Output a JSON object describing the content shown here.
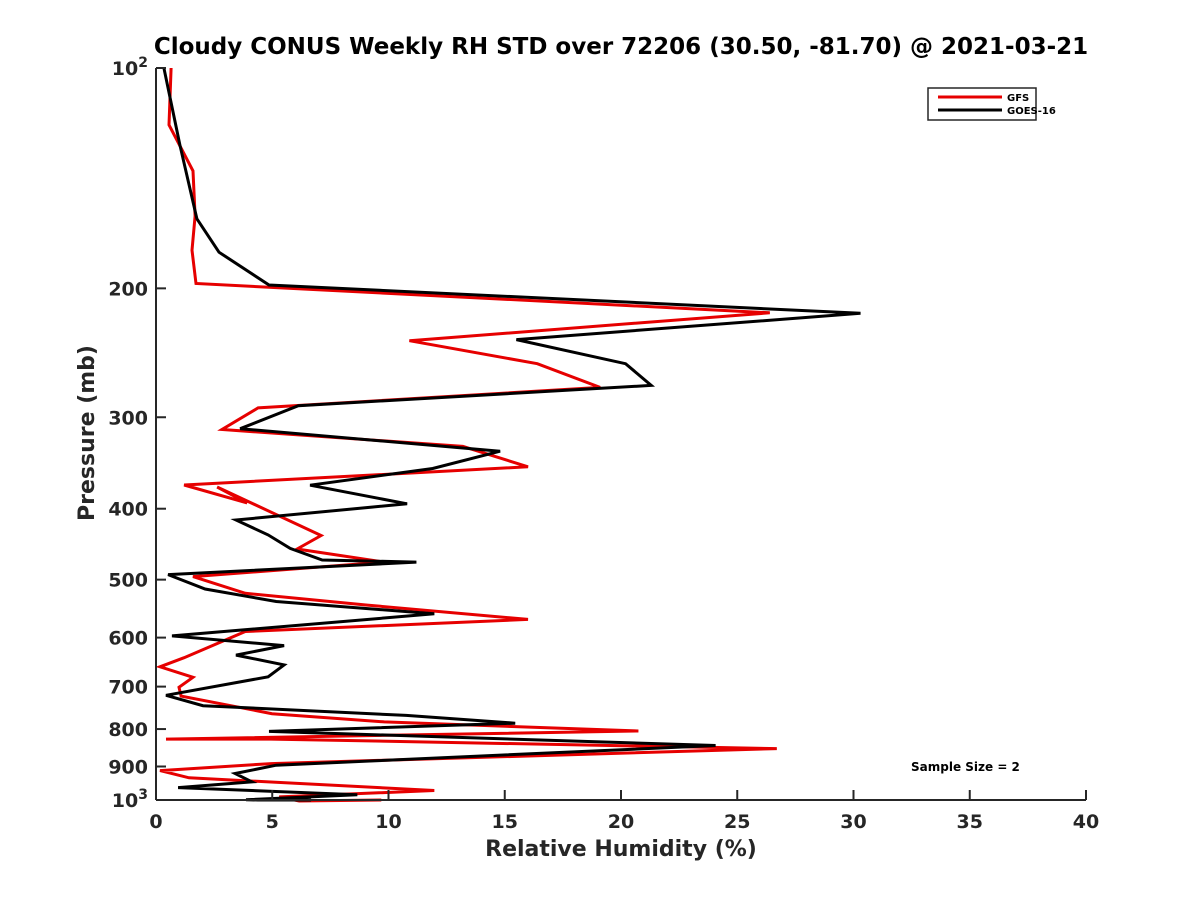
{
  "chart_data": {
    "type": "line",
    "title": "Cloudy CONUS Weekly RH STD over 72206 (30.50, -81.70) @ 2021-03-21",
    "xlabel": "Relative Humidity (%)",
    "ylabel": "Pressure (mb)",
    "xlim": [
      0,
      40
    ],
    "ylim": [
      100,
      1000
    ],
    "yscale": "log",
    "y_reversed": true,
    "grid": false,
    "legend_position": "top-right",
    "annotation": "Sample Size = 2",
    "xticks": [
      {
        "value": 0,
        "label": "0"
      },
      {
        "value": 5,
        "label": "5"
      },
      {
        "value": 10,
        "label": "10"
      },
      {
        "value": 15,
        "label": "15"
      },
      {
        "value": 20,
        "label": "20"
      },
      {
        "value": 25,
        "label": "25"
      },
      {
        "value": 30,
        "label": "30"
      },
      {
        "value": 35,
        "label": "35"
      },
      {
        "value": 40,
        "label": "40"
      }
    ],
    "yticks": [
      {
        "value": 100,
        "label": "10",
        "sup": "2"
      },
      {
        "value": 200,
        "label": "200",
        "sup": ""
      },
      {
        "value": 300,
        "label": "300",
        "sup": ""
      },
      {
        "value": 400,
        "label": "400",
        "sup": ""
      },
      {
        "value": 500,
        "label": "500",
        "sup": ""
      },
      {
        "value": 600,
        "label": "600",
        "sup": ""
      },
      {
        "value": 700,
        "label": "700",
        "sup": ""
      },
      {
        "value": 800,
        "label": "800",
        "sup": ""
      },
      {
        "value": 900,
        "label": "900",
        "sup": ""
      },
      {
        "value": 1000,
        "label": "10",
        "sup": "3"
      }
    ],
    "series": [
      {
        "name": "GFS",
        "color": "#e60000",
        "points": [
          [
            0.65,
            100
          ],
          [
            0.56,
            119.6
          ],
          [
            1.59,
            138.2
          ],
          [
            1.68,
            159.3
          ],
          [
            1.55,
            177.4
          ],
          [
            1.72,
            197.0
          ],
          [
            26.4,
            216.0
          ],
          [
            10.9,
            235.8
          ],
          [
            16.4,
            253.5
          ],
          [
            19.1,
            273.1
          ],
          [
            4.39,
            291.3
          ],
          [
            2.84,
            311.8
          ],
          [
            13.2,
            328.8
          ],
          [
            16.0,
            350.6
          ],
          [
            1.21,
            371.3
          ],
          [
            3.92,
            392.7
          ],
          [
            2.63,
            373.6
          ],
          [
            7.1,
            435.2
          ],
          [
            6.07,
            454.1
          ],
          [
            9.82,
            473.1
          ],
          [
            1.59,
            495.3
          ],
          [
            3.84,
            521.9
          ],
          [
            9.09,
            541.6
          ],
          [
            16.0,
            566.6
          ],
          [
            3.84,
            588.6
          ],
          [
            1.21,
            639.2
          ],
          [
            0.17,
            657.7
          ],
          [
            1.59,
            679.8
          ],
          [
            0.99,
            701.6
          ],
          [
            1.08,
            721.3
          ],
          [
            4.99,
            762.3
          ],
          [
            9.82,
            782.3
          ],
          [
            20.75,
            805.0
          ],
          [
            0.43,
            825.6
          ],
          [
            4.95,
            825.6
          ],
          [
            26.7,
            850.8
          ],
          [
            4.95,
            891.8
          ],
          [
            0.17,
            911.6
          ],
          [
            1.42,
            932.5
          ],
          [
            11.97,
            970.6
          ],
          [
            5.3,
            990.2
          ],
          [
            6.16,
            1003.0
          ],
          [
            9.69,
            1000
          ]
        ]
      },
      {
        "name": "GOES-16",
        "color": "#000000",
        "points": [
          [
            0.34,
            100
          ],
          [
            1.03,
            127.4
          ],
          [
            1.76,
            160.7
          ],
          [
            2.71,
            178.5
          ],
          [
            4.86,
            197.9
          ],
          [
            30.3,
            216.3
          ],
          [
            15.5,
            235.0
          ],
          [
            20.2,
            253.5
          ],
          [
            21.3,
            271.4
          ],
          [
            6.12,
            289.3
          ],
          [
            3.62,
            311.0
          ],
          [
            14.8,
            333.8
          ],
          [
            11.9,
            352.5
          ],
          [
            6.63,
            371.5
          ],
          [
            10.8,
            393.9
          ],
          [
            3.44,
            414.5
          ],
          [
            4.82,
            434.4
          ],
          [
            5.77,
            453.2
          ],
          [
            7.15,
            470.1
          ],
          [
            11.2,
            473.2
          ],
          [
            0.52,
            492.2
          ],
          [
            2.11,
            515.0
          ],
          [
            5.17,
            535.5
          ],
          [
            11.97,
            556.7
          ],
          [
            0.69,
            596.8
          ],
          [
            5.51,
            615.2
          ],
          [
            3.44,
            633.9
          ],
          [
            5.51,
            653.7
          ],
          [
            4.82,
            678.8
          ],
          [
            0.43,
            719.4
          ],
          [
            2.02,
            743.4
          ],
          [
            10.76,
            766.4
          ],
          [
            15.45,
            785.3
          ],
          [
            4.86,
            806.0
          ],
          [
            24.07,
            842.5
          ],
          [
            5.17,
            896.3
          ],
          [
            3.4,
            919.9
          ],
          [
            4.13,
            944.6
          ],
          [
            0.95,
            961.7
          ],
          [
            8.66,
            983.5
          ],
          [
            3.87,
            999.5
          ],
          [
            4.39,
            1000
          ],
          [
            6.67,
            1000
          ]
        ]
      }
    ]
  }
}
